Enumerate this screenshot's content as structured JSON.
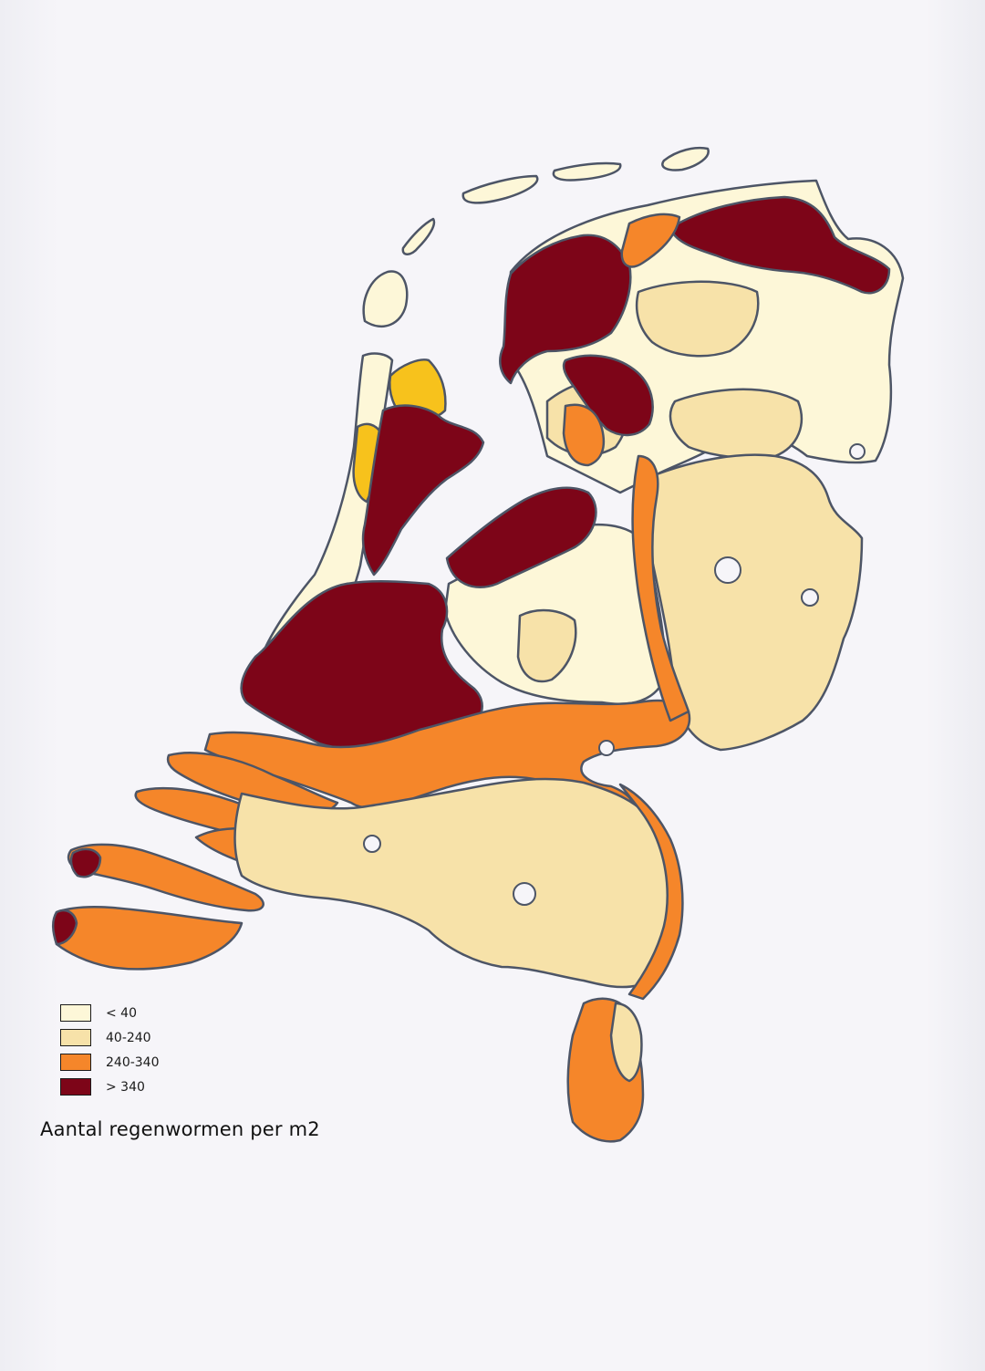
{
  "map": {
    "title": "Aantal regenwormen per m2",
    "colors": {
      "c1": "#fdf7d8",
      "c2": "#f7e2a9",
      "c3": "#f5862a",
      "c4": "#7d0518",
      "dunes_yellow": "#f7c21c",
      "outline": "#4d5566"
    }
  },
  "legend": {
    "items": [
      {
        "label": "< 40",
        "color": "#fdf7d8"
      },
      {
        "label": "40-240",
        "color": "#f7e2a9"
      },
      {
        "label": "240-340",
        "color": "#f5862a"
      },
      {
        "label": "> 340",
        "color": "#7d0518"
      }
    ]
  }
}
